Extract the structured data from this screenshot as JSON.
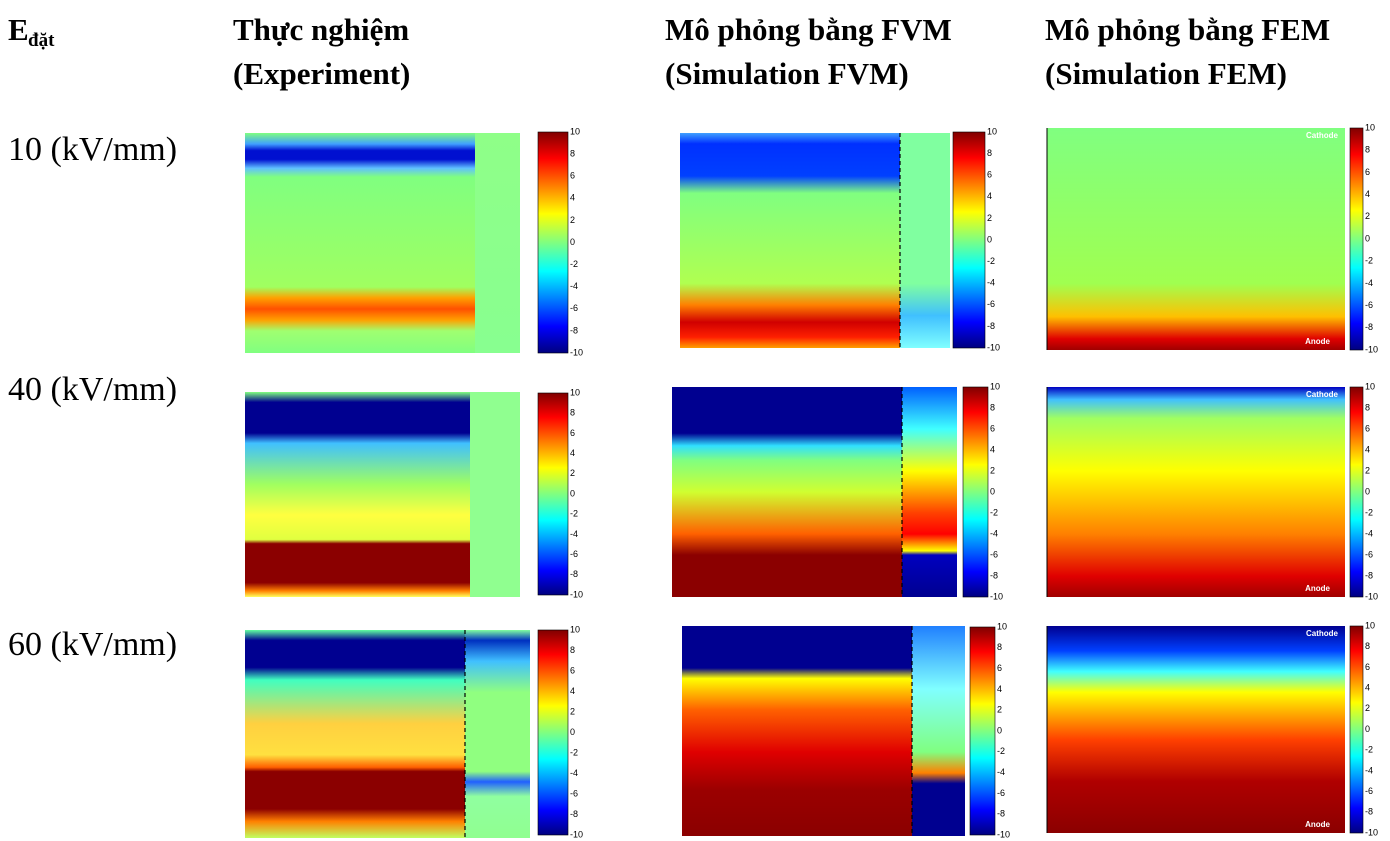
{
  "header": {
    "field_label": "E",
    "field_subscript": "đặt",
    "columns": [
      {
        "title": "Thực nghiệm",
        "subtitle": "(Experiment)"
      },
      {
        "title": "Mô phỏng bằng FVM",
        "subtitle": "(Simulation FVM)"
      },
      {
        "title": "Mô phỏng bằng FEM",
        "subtitle": "(Simulation FEM)"
      }
    ]
  },
  "rows": [
    {
      "label": "10 (kV/mm)"
    },
    {
      "label": "40 (kV/mm)"
    },
    {
      "label": "60 (kV/mm)"
    }
  ],
  "colorbar_ticks": [
    10,
    8,
    6,
    4,
    2,
    0,
    -2,
    -4,
    -6,
    -8,
    -10
  ],
  "electrodes": {
    "top": "Cathode",
    "bottom": "Anode"
  }
}
